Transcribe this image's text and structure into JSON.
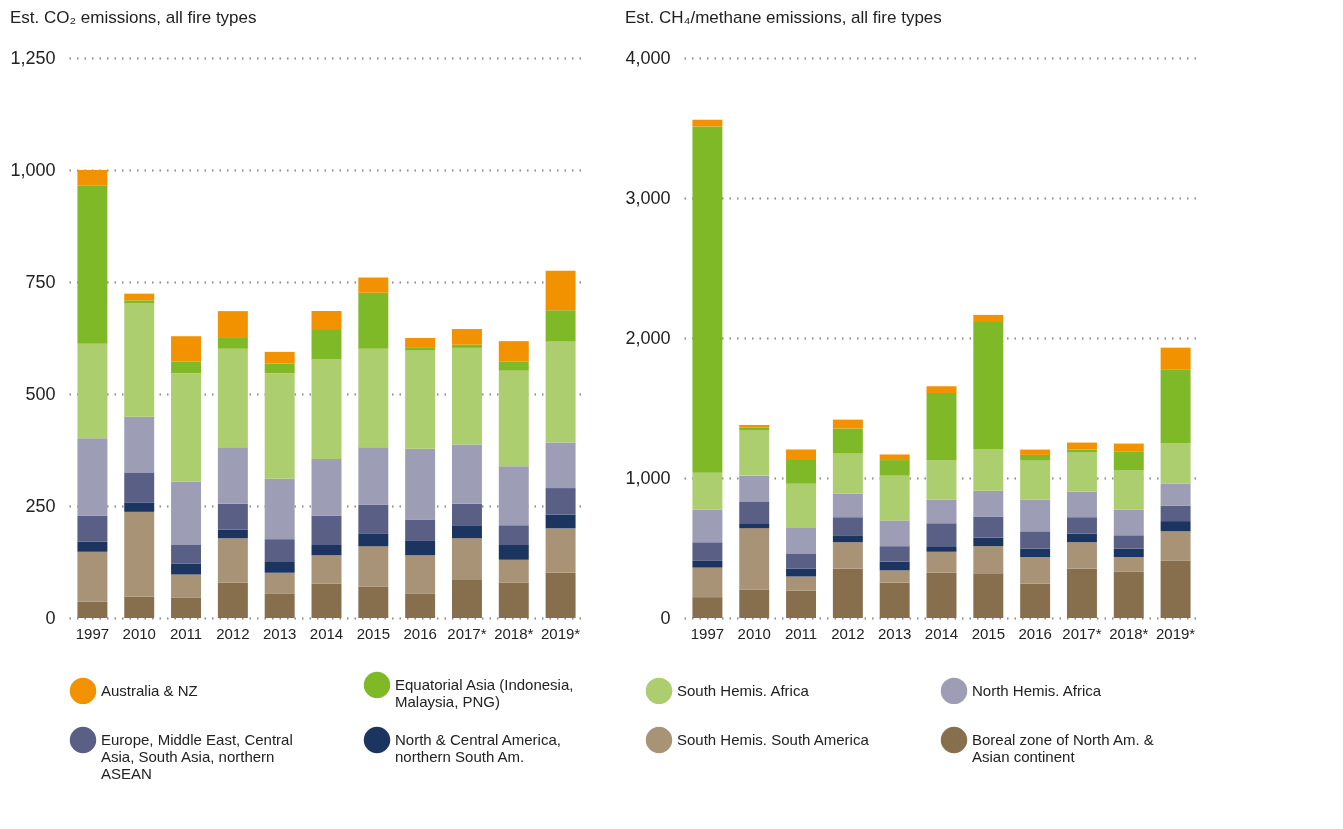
{
  "chart_data": [
    {
      "type": "bar",
      "title": "Est. CO₂ emissions, all fire types",
      "stacked": true,
      "grid": "y",
      "legend": "bottom",
      "categories": [
        "1997",
        "2010",
        "2011",
        "2012",
        "2013",
        "2014",
        "2015",
        "2016",
        "2017*",
        "2018*",
        "2019*"
      ],
      "ylim": [
        0,
        1250
      ],
      "yticks": [
        0,
        250,
        500,
        750,
        {
          "value": 1000,
          "label": "1,000"
        },
        {
          "value": 1250,
          "label": "1,250"
        }
      ],
      "series": [
        {
          "name": "Boreal zone of North Am. & Asian continent",
          "color": "#876f4d",
          "values": [
            37,
            48,
            46,
            79,
            55,
            77,
            70,
            55,
            85,
            79,
            101
          ]
        },
        {
          "name": "South Hemis. South America",
          "color": "#a89377",
          "values": [
            111,
            189,
            51,
            99,
            46,
            63,
            90,
            85,
            93,
            51,
            99
          ]
        },
        {
          "name": "North & Central America, northern South Am.",
          "color": "#1c3560",
          "values": [
            23,
            20,
            24,
            19,
            24,
            23,
            29,
            32,
            29,
            33,
            31
          ]
        },
        {
          "name": "Europe, Middle East, Central Asia, South Asia, northern ASEAN",
          "color": "#5a5f85",
          "values": [
            58,
            68,
            42,
            58,
            51,
            66,
            64,
            48,
            48,
            44,
            59
          ]
        },
        {
          "name": "North Hemis. Africa",
          "color": "#9d9db5",
          "values": [
            172,
            124,
            141,
            126,
            135,
            126,
            128,
            158,
            132,
            132,
            102
          ]
        },
        {
          "name": "South Hemis. Africa",
          "color": "#acce6e",
          "values": [
            211,
            253,
            242,
            220,
            235,
            222,
            220,
            219,
            216,
            213,
            225
          ]
        },
        {
          "name": "Equatorial Asia (Indonesia, Malaysia, PNG)",
          "color": "#80b927",
          "values": [
            353,
            7,
            26,
            26,
            22,
            66,
            125,
            6,
            7,
            20,
            70
          ]
        },
        {
          "name": "Australia & NZ",
          "color": "#f39200",
          "values": [
            35,
            15,
            57,
            58,
            26,
            42,
            34,
            22,
            35,
            46,
            88
          ]
        }
      ]
    },
    {
      "type": "bar",
      "title": "Est. CH₄/methane emissions, all fire types",
      "stacked": true,
      "grid": "y",
      "legend": "bottom",
      "categories": [
        "1997",
        "2010",
        "2011",
        "2012",
        "2013",
        "2014",
        "2015",
        "2016",
        "2017*",
        "2018*",
        "2019*"
      ],
      "ylim": [
        0,
        4000
      ],
      "yticks": [
        0,
        {
          "value": 1000,
          "label": "1,000"
        },
        {
          "value": 2000,
          "label": "2,000"
        },
        {
          "value": 3000,
          "label": "3,000"
        },
        {
          "value": 4000,
          "label": "4,000"
        }
      ],
      "series": [
        {
          "name": "Boreal zone of North Am. & Asian continent",
          "color": "#876f4d",
          "values": [
            149,
            204,
            196,
            352,
            254,
            325,
            320,
            247,
            352,
            330,
            408
          ]
        },
        {
          "name": "South Hemis. South America",
          "color": "#a89377",
          "values": [
            211,
            438,
            101,
            189,
            86,
            148,
            193,
            188,
            189,
            105,
            211
          ]
        },
        {
          "name": "North & Central America, northern South Am.",
          "color": "#1c3560",
          "values": [
            48,
            35,
            55,
            45,
            63,
            35,
            61,
            61,
            61,
            61,
            73
          ]
        },
        {
          "name": "Europe, Middle East, Central Asia, South Asia, northern ASEAN",
          "color": "#5a5f85",
          "values": [
            133,
            156,
            106,
            134,
            110,
            169,
            151,
            123,
            118,
            95,
            111
          ]
        },
        {
          "name": "North Hemis. Africa",
          "color": "#9d9db5",
          "values": [
            234,
            184,
            184,
            168,
            184,
            169,
            184,
            227,
            181,
            184,
            156
          ]
        },
        {
          "name": "South Hemis. Africa",
          "color": "#acce6e",
          "values": [
            262,
            322,
            317,
            290,
            320,
            282,
            299,
            282,
            284,
            282,
            287
          ]
        },
        {
          "name": "Equatorial Asia (Indonesia, Malaysia, PNG)",
          "color": "#80b927",
          "values": [
            2474,
            20,
            169,
            176,
            111,
            480,
            906,
            37,
            18,
            134,
            531
          ]
        },
        {
          "name": "Australia & NZ",
          "color": "#f39200",
          "values": [
            48,
            20,
            75,
            63,
            40,
            48,
            51,
            38,
            50,
            55,
            154
          ]
        }
      ]
    }
  ]
}
